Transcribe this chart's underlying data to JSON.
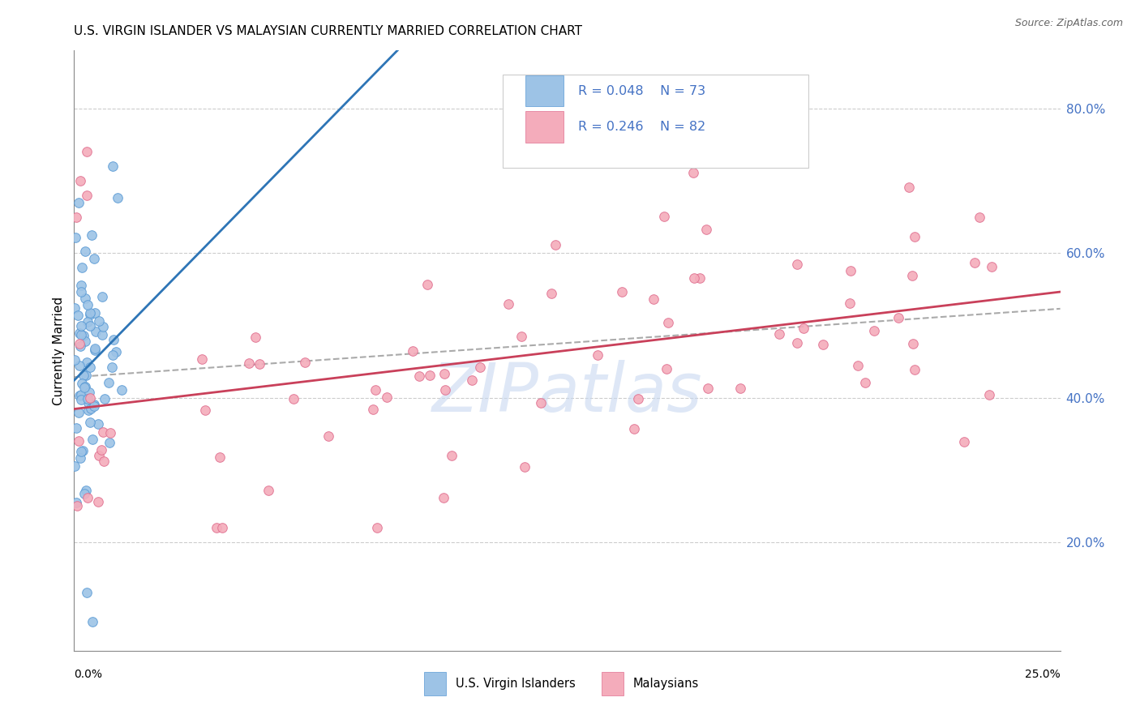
{
  "title": "U.S. VIRGIN ISLANDER VS MALAYSIAN CURRENTLY MARRIED CORRELATION CHART",
  "source": "Source: ZipAtlas.com",
  "ylabel": "Currently Married",
  "ytick_values": [
    0.2,
    0.4,
    0.6,
    0.8
  ],
  "xmin": 0.0,
  "xmax": 0.25,
  "ymin": 0.05,
  "ymax": 0.88,
  "color_vi": "#9DC3E6",
  "color_ms": "#F4ACBB",
  "color_vi_line": "#2E75B6",
  "color_ms_line": "#C9405A",
  "color_vi_edge": "#5B9BD5",
  "color_ms_edge": "#E07090",
  "color_dashed": "#AAAAAA",
  "watermark_color": "#C8D8F0",
  "legend_label1": "U.S. Virgin Islanders",
  "legend_label2": "Malaysians",
  "legend_color": "#4472C4",
  "right_axis_color": "#4472C4"
}
